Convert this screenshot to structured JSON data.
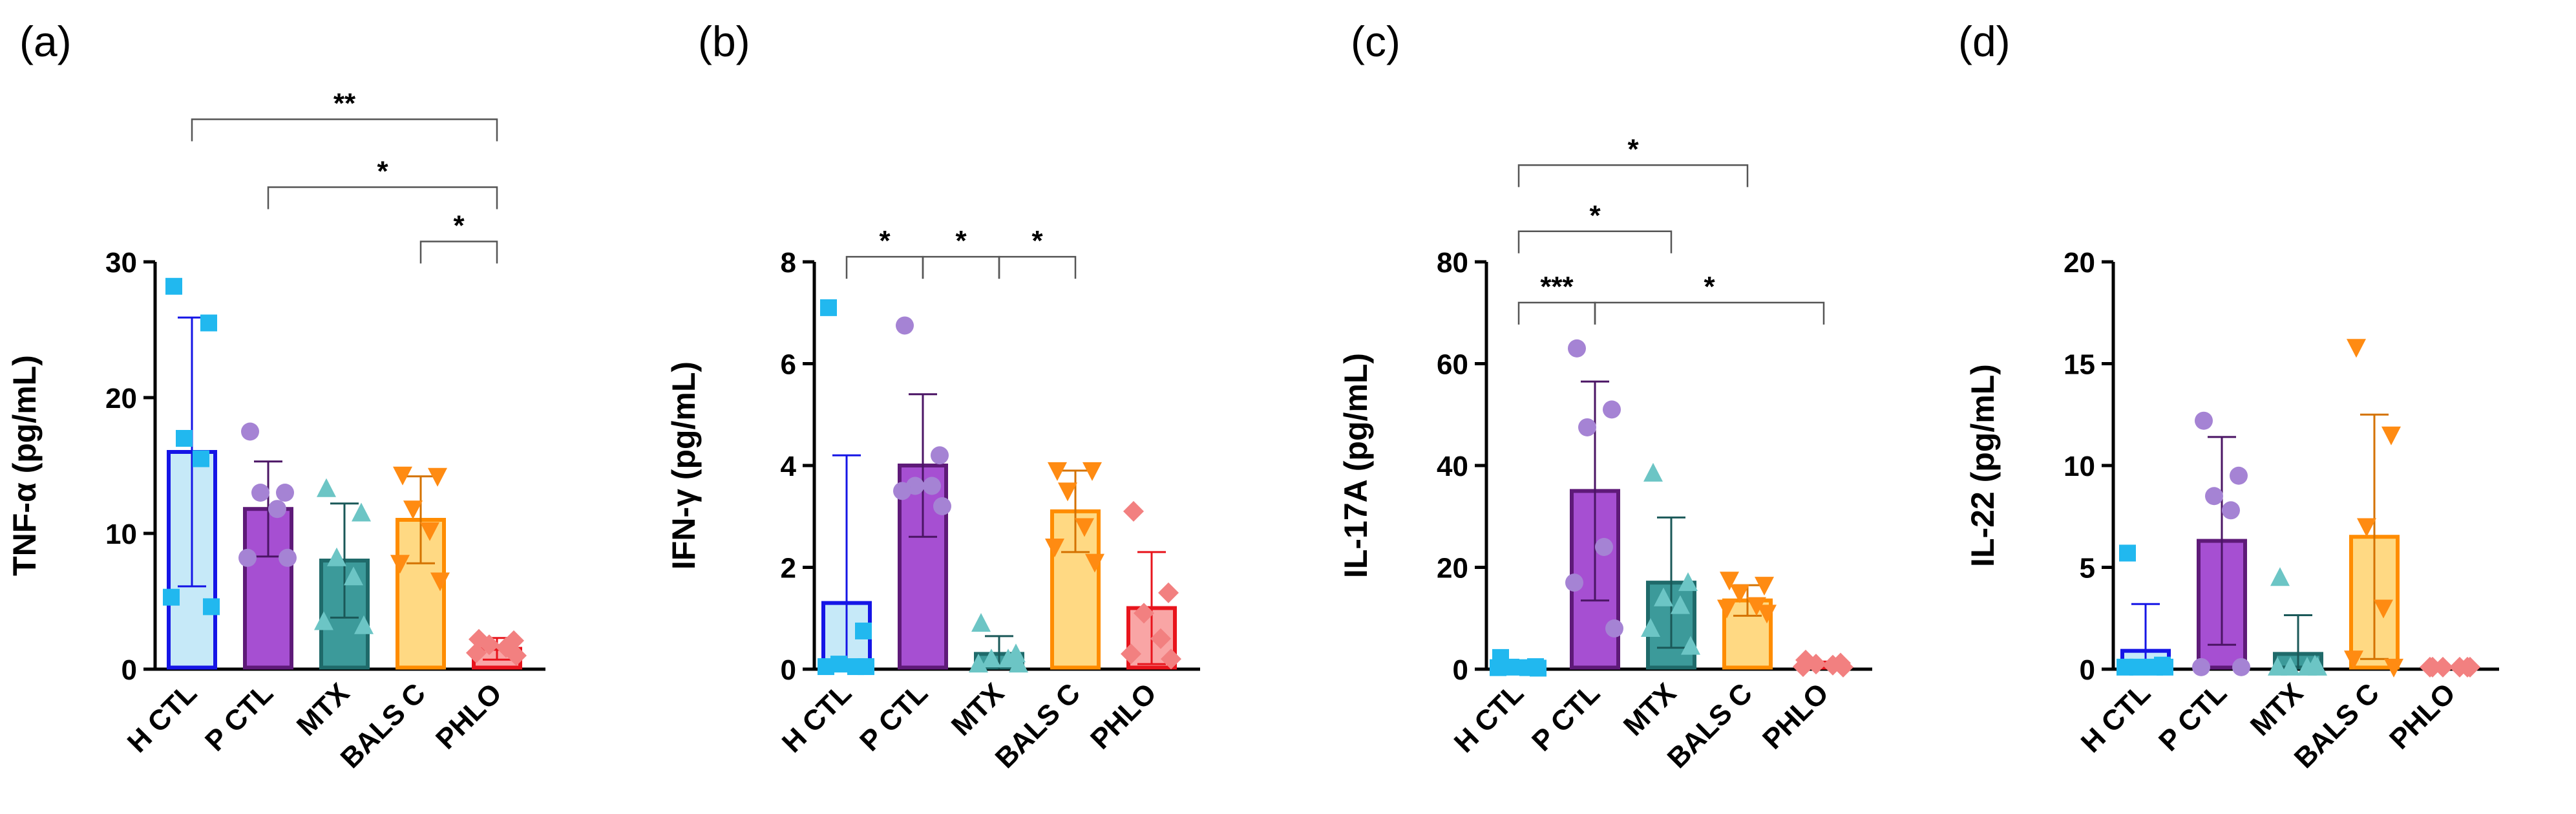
{
  "chart_data": [
    {
      "type": "bar",
      "panel_label": "(a)",
      "ylabel": "TNF-α (pg/mL)",
      "ylim": [
        0,
        30
      ],
      "yticks": [
        "0",
        "10",
        "20",
        "30"
      ],
      "categories": [
        "H CTL",
        "P CTL",
        "MTX",
        "BALS C",
        "PHLO"
      ],
      "values": [
        16,
        11.8,
        8,
        11,
        1.5
      ],
      "errors": [
        9.9,
        3.5,
        4.2,
        3.2,
        0.8
      ],
      "points": [
        [
          28.2,
          25.5,
          17,
          15.5,
          5.3,
          4.6
        ],
        [
          17.5,
          13,
          13,
          11.8,
          8.2,
          8.2
        ],
        [
          13.3,
          11.5,
          8.2,
          6.8,
          3.5,
          3.2
        ],
        [
          14.3,
          14.2,
          11.8,
          10.2,
          7.8,
          6.5
        ],
        [
          2.2,
          2.1,
          1.8,
          1.6,
          1.2,
          1
        ]
      ],
      "significance": [
        {
          "from": 0,
          "to": 4,
          "label": "**",
          "y": 40.5
        },
        {
          "from": 1,
          "to": 4,
          "label": "*",
          "y": 35.5
        },
        {
          "from": 3,
          "to": 4,
          "label": "*",
          "y": 31.5
        }
      ]
    },
    {
      "type": "bar",
      "panel_label": "(b)",
      "ylabel": "IFN-γ (pg/mL)",
      "ylim": [
        0,
        8
      ],
      "yticks": [
        "0",
        "2",
        "4",
        "6",
        "8"
      ],
      "categories": [
        "H CTL",
        "P CTL",
        "MTX",
        "BALS C",
        "PHLO"
      ],
      "values": [
        1.3,
        4,
        0.3,
        3.1,
        1.2
      ],
      "errors": [
        2.9,
        1.4,
        0.35,
        0.8,
        1.1
      ],
      "points": [
        [
          7.1,
          0.75,
          0.1,
          0.05,
          0.05,
          0.05
        ],
        [
          6.75,
          4.2,
          3.6,
          3.6,
          3.5,
          3.2
        ],
        [
          0.9,
          0.3,
          0.2,
          0.2,
          0.1,
          0.1
        ],
        [
          3.9,
          3.9,
          3.5,
          2.8,
          2.4,
          2.1
        ],
        [
          3.1,
          1.5,
          1.1,
          0.6,
          0.3,
          0.2
        ]
      ],
      "significance": [
        {
          "from": 0,
          "to": 1,
          "label": "*",
          "y": 8.1
        },
        {
          "from": 1,
          "to": 2,
          "label": "*",
          "y": 8.1
        },
        {
          "from": 2,
          "to": 3,
          "label": "*",
          "y": 8.1
        }
      ]
    },
    {
      "type": "bar",
      "panel_label": "(c)",
      "ylabel": "IL-17A (pg/mL)",
      "ylim": [
        0,
        80
      ],
      "yticks": [
        "0",
        "20",
        "40",
        "60",
        "80"
      ],
      "categories": [
        "H CTL",
        "P CTL",
        "MTX",
        "BALS C",
        "PHLO"
      ],
      "values": [
        0.7,
        35,
        17,
        13.5,
        1
      ],
      "errors": [
        0.5,
        21.5,
        12.8,
        3,
        0.5
      ],
      "points": [
        [
          2.3,
          0.5,
          0.4,
          0.3,
          0.3,
          0.2
        ],
        [
          63,
          51,
          47.5,
          24,
          17,
          8
        ],
        [
          38.5,
          17,
          14,
          12.5,
          8,
          4.5
        ],
        [
          17.5,
          16.5,
          15,
          12.5,
          12,
          11
        ],
        [
          1.8,
          1.2,
          1,
          0.8,
          0.5,
          0.4
        ]
      ],
      "significance": [
        {
          "from": 0,
          "to": 3,
          "label": "*",
          "y": 99
        },
        {
          "from": 0,
          "to": 2,
          "label": "*",
          "y": 86
        },
        {
          "from": 0,
          "to": 1,
          "label": "***",
          "y": 72
        },
        {
          "from": 1,
          "to": 4,
          "label": "*",
          "y": 72
        }
      ]
    },
    {
      "type": "bar",
      "panel_label": "(d)",
      "ylabel": "IL-22 (pg/mL)",
      "ylim": [
        0,
        20
      ],
      "yticks": [
        "0",
        "5",
        "10",
        "15",
        "20"
      ],
      "categories": [
        "H CTL",
        "P CTL",
        "MTX",
        "BALS C",
        "PHLO"
      ],
      "values": [
        0.9,
        6.3,
        0.75,
        6.5,
        0.1
      ],
      "errors": [
        2.3,
        5.1,
        1.9,
        6,
        0
      ],
      "points": [
        [
          5.7,
          0.2,
          0.1,
          0.1,
          0.1,
          0.1
        ],
        [
          12.2,
          9.5,
          8.5,
          7.8,
          0.1,
          0.1
        ],
        [
          4.5,
          0.2,
          0.1,
          0.1,
          0.1,
          0.1
        ],
        [
          15.8,
          11.5,
          7,
          3,
          0.5,
          0.1
        ],
        [
          0.1,
          0.1,
          0.1,
          0.1,
          0.1,
          0.1
        ]
      ],
      "significance": []
    }
  ],
  "series_styles": {
    "fills": [
      "#c6e9f8",
      "#a64fd2",
      "#3c9a9a",
      "#ffd983",
      "#f9a5a5"
    ],
    "strokes": [
      "#1515e6",
      "#5e1a78",
      "#1f6a6a",
      "#ff8c00",
      "#e8141c"
    ],
    "errorbar": [
      "#1515e6",
      "#4b1565",
      "#1a5858",
      "#d47200",
      "#e8141c"
    ],
    "markers": [
      "#21b8ef",
      "#a583d4",
      "#6cc5c5",
      "#ff8b12",
      "#f28080"
    ],
    "marker_shapes": [
      "square",
      "circle",
      "triangle",
      "triangle-down",
      "diamond"
    ]
  }
}
